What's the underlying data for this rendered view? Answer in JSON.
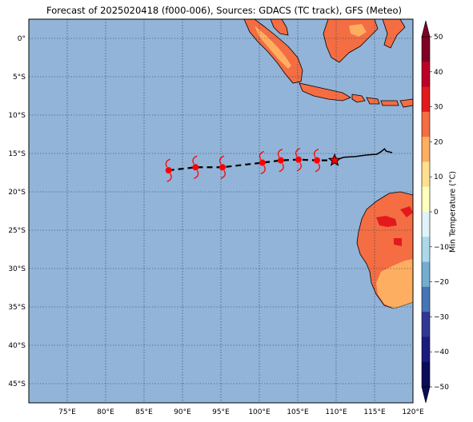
{
  "title": "Forecast of 2025020418 (f000-006), Sources: GDACS (TC track), GFS (Meteo)",
  "map": {
    "lat_ticks": [
      "0°",
      "5°S",
      "10°S",
      "15°S",
      "20°S",
      "25°S",
      "30°S",
      "35°S",
      "40°S",
      "45°S"
    ],
    "lon_ticks": [
      "75°E",
      "80°E",
      "85°E",
      "90°E",
      "95°E",
      "100°E",
      "105°E",
      "110°E",
      "115°E",
      "120°E"
    ],
    "lon_range": [
      70,
      120
    ],
    "lat_range": [
      -47.5,
      2.5
    ],
    "ocean_color": "#92b4d8",
    "grid": "dotted"
  },
  "track": {
    "forecast_points": [
      {
        "lon": 88.2,
        "lat": -17.2
      },
      {
        "lon": 91.7,
        "lat": -16.8
      },
      {
        "lon": 95.2,
        "lat": -16.8
      },
      {
        "lon": 100.4,
        "lat": -16.2
      },
      {
        "lon": 102.8,
        "lat": -15.9
      },
      {
        "lon": 105.1,
        "lat": -15.8
      },
      {
        "lon": 107.5,
        "lat": -15.9
      }
    ],
    "current_position": {
      "lon": 109.8,
      "lat": -15.9
    },
    "past_track": [
      {
        "lon": 109.8,
        "lat": -15.9
      },
      {
        "lon": 111.0,
        "lat": -15.5
      },
      {
        "lon": 112.5,
        "lat": -15.4
      },
      {
        "lon": 114.0,
        "lat": -15.2
      },
      {
        "lon": 115.3,
        "lat": -15.1
      },
      {
        "lon": 115.8,
        "lat": -14.8
      },
      {
        "lon": 116.3,
        "lat": -14.4
      },
      {
        "lon": 116.5,
        "lat": -14.7
      },
      {
        "lon": 117.3,
        "lat": -14.9
      }
    ],
    "symbol_color": "#ff0000",
    "line_color": "#000000"
  },
  "colorbar": {
    "label": "Min Temperature (°C)",
    "ticks": [
      "50",
      "40",
      "30",
      "20",
      "10",
      "0",
      "−10",
      "−20",
      "−30",
      "−40",
      "−50"
    ],
    "colors": [
      "#800026",
      "#bd0026",
      "#e31a1c",
      "#f46d43",
      "#fdae61",
      "#fee090",
      "#ffffbf",
      "#e0f3f8",
      "#abd9e9",
      "#74add1",
      "#4575b4",
      "#313695",
      "#1a1a80",
      "#0b0b5a"
    ]
  }
}
